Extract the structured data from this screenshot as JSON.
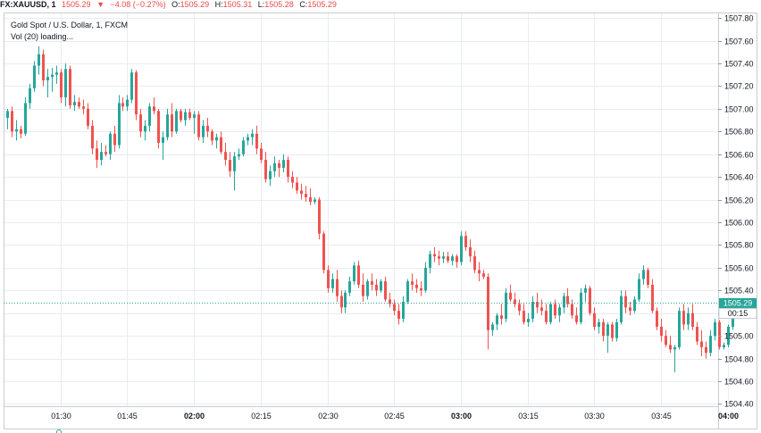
{
  "header": {
    "symbol": "FX:XAUUSD, 1",
    "last": "1505.29",
    "change_arrow": "▼",
    "change": "−4.08 (−0.27%)",
    "o_label": "O:",
    "o_value": "1505.29",
    "h_label": "H:",
    "h_value": "1505.31",
    "l_label": "L:",
    "l_value": "1505.28",
    "c_label": "C:",
    "c_value": "1505.29"
  },
  "legend": {
    "title": "Gold Spot / U.S. Dollar, 1, FXCM",
    "volume": "Vol (20) loading..."
  },
  "price_label": "1505.29",
  "countdown": "00:15",
  "colors": {
    "up": "#26a69a",
    "down": "#ef5350",
    "grid": "#e8ecf2",
    "price_line": "#26a69a",
    "text": "#131722"
  },
  "chart_data": {
    "type": "candlestick",
    "title": "Gold Spot / U.S. Dollar, 1, FXCM",
    "y_ticks": [
      "1504.40",
      "1504.60",
      "1504.80",
      "1505.00",
      "1505.20",
      "1505.40",
      "1505.60",
      "1505.80",
      "1506.00",
      "1506.20",
      "1506.40",
      "1506.60",
      "1506.80",
      "1507.00",
      "1507.20",
      "1507.40",
      "1507.60",
      "1507.80"
    ],
    "ylim": [
      1504.38,
      1507.84
    ],
    "x_ticks": [
      {
        "label": "01:30",
        "bar": 12,
        "bold": false
      },
      {
        "label": "01:45",
        "bar": 27,
        "bold": false
      },
      {
        "label": "02:00",
        "bar": 42,
        "bold": true
      },
      {
        "label": "02:15",
        "bar": 57,
        "bold": false
      },
      {
        "label": "02:30",
        "bar": 72,
        "bold": false
      },
      {
        "label": "02:45",
        "bar": 87,
        "bold": false
      },
      {
        "label": "03:00",
        "bar": 102,
        "bold": true
      },
      {
        "label": "03:15",
        "bar": 117,
        "bold": false
      },
      {
        "label": "03:30",
        "bar": 132,
        "bold": false
      },
      {
        "label": "03:45",
        "bar": 147,
        "bold": false
      },
      {
        "label": "04:00",
        "bar": 162,
        "bold": true
      }
    ],
    "last_price": 1505.29,
    "grid": true,
    "series": [
      {
        "o": 1506.92,
        "h": 1507.0,
        "l": 1506.82,
        "c": 1506.98
      },
      {
        "o": 1506.98,
        "h": 1507.02,
        "l": 1506.75,
        "c": 1506.8
      },
      {
        "o": 1506.8,
        "h": 1506.9,
        "l": 1506.72,
        "c": 1506.82
      },
      {
        "o": 1506.82,
        "h": 1506.85,
        "l": 1506.74,
        "c": 1506.78
      },
      {
        "o": 1506.78,
        "h": 1507.1,
        "l": 1506.76,
        "c": 1507.05
      },
      {
        "o": 1507.05,
        "h": 1507.22,
        "l": 1507.0,
        "c": 1507.18
      },
      {
        "o": 1507.18,
        "h": 1507.42,
        "l": 1507.15,
        "c": 1507.38
      },
      {
        "o": 1507.38,
        "h": 1507.55,
        "l": 1507.3,
        "c": 1507.48
      },
      {
        "o": 1507.48,
        "h": 1507.52,
        "l": 1507.2,
        "c": 1507.25
      },
      {
        "o": 1507.25,
        "h": 1507.35,
        "l": 1507.1,
        "c": 1507.28
      },
      {
        "o": 1507.28,
        "h": 1507.36,
        "l": 1507.15,
        "c": 1507.3
      },
      {
        "o": 1507.3,
        "h": 1507.38,
        "l": 1507.22,
        "c": 1507.32
      },
      {
        "o": 1507.32,
        "h": 1507.35,
        "l": 1507.05,
        "c": 1507.1
      },
      {
        "o": 1507.1,
        "h": 1507.4,
        "l": 1507.02,
        "c": 1507.35
      },
      {
        "o": 1507.35,
        "h": 1507.38,
        "l": 1507.0,
        "c": 1507.03
      },
      {
        "o": 1507.03,
        "h": 1507.12,
        "l": 1506.98,
        "c": 1507.06
      },
      {
        "o": 1507.06,
        "h": 1507.1,
        "l": 1507.0,
        "c": 1507.02
      },
      {
        "o": 1507.02,
        "h": 1507.08,
        "l": 1506.95,
        "c": 1507.0
      },
      {
        "o": 1507.0,
        "h": 1507.05,
        "l": 1506.82,
        "c": 1506.85
      },
      {
        "o": 1506.85,
        "h": 1506.9,
        "l": 1506.6,
        "c": 1506.65
      },
      {
        "o": 1506.65,
        "h": 1506.72,
        "l": 1506.48,
        "c": 1506.55
      },
      {
        "o": 1506.55,
        "h": 1506.7,
        "l": 1506.5,
        "c": 1506.62
      },
      {
        "o": 1506.62,
        "h": 1506.68,
        "l": 1506.58,
        "c": 1506.6
      },
      {
        "o": 1506.6,
        "h": 1506.8,
        "l": 1506.55,
        "c": 1506.78
      },
      {
        "o": 1506.78,
        "h": 1506.85,
        "l": 1506.62,
        "c": 1506.68
      },
      {
        "o": 1506.68,
        "h": 1507.12,
        "l": 1506.65,
        "c": 1507.05
      },
      {
        "o": 1507.05,
        "h": 1507.1,
        "l": 1506.98,
        "c": 1507.02
      },
      {
        "o": 1507.02,
        "h": 1507.12,
        "l": 1506.98,
        "c": 1507.08
      },
      {
        "o": 1507.08,
        "h": 1507.35,
        "l": 1507.05,
        "c": 1507.32
      },
      {
        "o": 1507.32,
        "h": 1507.34,
        "l": 1506.9,
        "c": 1506.95
      },
      {
        "o": 1506.95,
        "h": 1507.0,
        "l": 1506.75,
        "c": 1506.8
      },
      {
        "o": 1506.8,
        "h": 1506.9,
        "l": 1506.72,
        "c": 1506.85
      },
      {
        "o": 1506.85,
        "h": 1507.05,
        "l": 1506.8,
        "c": 1507.02
      },
      {
        "o": 1507.02,
        "h": 1507.1,
        "l": 1506.95,
        "c": 1506.98
      },
      {
        "o": 1506.98,
        "h": 1507.0,
        "l": 1506.65,
        "c": 1506.7
      },
      {
        "o": 1506.7,
        "h": 1506.8,
        "l": 1506.55,
        "c": 1506.75
      },
      {
        "o": 1506.75,
        "h": 1507.0,
        "l": 1506.72,
        "c": 1506.95
      },
      {
        "o": 1506.95,
        "h": 1507.05,
        "l": 1506.75,
        "c": 1506.8
      },
      {
        "o": 1506.8,
        "h": 1507.0,
        "l": 1506.78,
        "c": 1506.98
      },
      {
        "o": 1506.98,
        "h": 1507.0,
        "l": 1506.88,
        "c": 1506.9
      },
      {
        "o": 1506.9,
        "h": 1507.0,
        "l": 1506.85,
        "c": 1506.97
      },
      {
        "o": 1506.97,
        "h": 1507.0,
        "l": 1506.9,
        "c": 1506.92
      },
      {
        "o": 1506.92,
        "h": 1506.98,
        "l": 1506.78,
        "c": 1506.95
      },
      {
        "o": 1506.95,
        "h": 1506.98,
        "l": 1506.72,
        "c": 1506.75
      },
      {
        "o": 1506.75,
        "h": 1506.9,
        "l": 1506.7,
        "c": 1506.85
      },
      {
        "o": 1506.85,
        "h": 1506.92,
        "l": 1506.75,
        "c": 1506.8
      },
      {
        "o": 1506.8,
        "h": 1506.82,
        "l": 1506.68,
        "c": 1506.72
      },
      {
        "o": 1506.72,
        "h": 1506.78,
        "l": 1506.65,
        "c": 1506.75
      },
      {
        "o": 1506.75,
        "h": 1506.8,
        "l": 1506.6,
        "c": 1506.62
      },
      {
        "o": 1506.62,
        "h": 1506.7,
        "l": 1506.5,
        "c": 1506.55
      },
      {
        "o": 1506.55,
        "h": 1506.62,
        "l": 1506.4,
        "c": 1506.45
      },
      {
        "o": 1506.45,
        "h": 1506.62,
        "l": 1506.28,
        "c": 1506.58
      },
      {
        "o": 1506.58,
        "h": 1506.65,
        "l": 1506.55,
        "c": 1506.6
      },
      {
        "o": 1506.6,
        "h": 1506.75,
        "l": 1506.58,
        "c": 1506.72
      },
      {
        "o": 1506.72,
        "h": 1506.78,
        "l": 1506.68,
        "c": 1506.75
      },
      {
        "o": 1506.75,
        "h": 1506.82,
        "l": 1506.68,
        "c": 1506.78
      },
      {
        "o": 1506.78,
        "h": 1506.85,
        "l": 1506.6,
        "c": 1506.65
      },
      {
        "o": 1506.65,
        "h": 1506.7,
        "l": 1506.52,
        "c": 1506.55
      },
      {
        "o": 1506.55,
        "h": 1506.62,
        "l": 1506.35,
        "c": 1506.38
      },
      {
        "o": 1506.38,
        "h": 1506.5,
        "l": 1506.32,
        "c": 1506.45
      },
      {
        "o": 1506.45,
        "h": 1506.58,
        "l": 1506.4,
        "c": 1506.52
      },
      {
        "o": 1506.52,
        "h": 1506.55,
        "l": 1506.4,
        "c": 1506.48
      },
      {
        "o": 1506.48,
        "h": 1506.6,
        "l": 1506.44,
        "c": 1506.55
      },
      {
        "o": 1506.55,
        "h": 1506.58,
        "l": 1506.35,
        "c": 1506.4
      },
      {
        "o": 1506.4,
        "h": 1506.45,
        "l": 1506.3,
        "c": 1506.35
      },
      {
        "o": 1506.35,
        "h": 1506.4,
        "l": 1506.25,
        "c": 1506.28
      },
      {
        "o": 1506.28,
        "h": 1506.34,
        "l": 1506.2,
        "c": 1506.25
      },
      {
        "o": 1506.25,
        "h": 1506.32,
        "l": 1506.18,
        "c": 1506.22
      },
      {
        "o": 1506.22,
        "h": 1506.3,
        "l": 1506.15,
        "c": 1506.18
      },
      {
        "o": 1506.18,
        "h": 1506.22,
        "l": 1506.16,
        "c": 1506.2
      },
      {
        "o": 1506.2,
        "h": 1506.22,
        "l": 1505.85,
        "c": 1505.9
      },
      {
        "o": 1505.9,
        "h": 1505.92,
        "l": 1505.55,
        "c": 1505.58
      },
      {
        "o": 1505.58,
        "h": 1505.62,
        "l": 1505.38,
        "c": 1505.42
      },
      {
        "o": 1505.42,
        "h": 1505.55,
        "l": 1505.38,
        "c": 1505.5
      },
      {
        "o": 1505.5,
        "h": 1505.58,
        "l": 1505.3,
        "c": 1505.35
      },
      {
        "o": 1505.35,
        "h": 1505.4,
        "l": 1505.2,
        "c": 1505.25
      },
      {
        "o": 1505.25,
        "h": 1505.4,
        "l": 1505.2,
        "c": 1505.38
      },
      {
        "o": 1505.38,
        "h": 1505.52,
        "l": 1505.35,
        "c": 1505.48
      },
      {
        "o": 1505.48,
        "h": 1505.65,
        "l": 1505.45,
        "c": 1505.62
      },
      {
        "o": 1505.62,
        "h": 1505.66,
        "l": 1505.42,
        "c": 1505.45
      },
      {
        "o": 1505.45,
        "h": 1505.55,
        "l": 1505.3,
        "c": 1505.35
      },
      {
        "o": 1505.35,
        "h": 1505.5,
        "l": 1505.32,
        "c": 1505.48
      },
      {
        "o": 1505.48,
        "h": 1505.55,
        "l": 1505.4,
        "c": 1505.45
      },
      {
        "o": 1505.45,
        "h": 1505.5,
        "l": 1505.35,
        "c": 1505.4
      },
      {
        "o": 1505.4,
        "h": 1505.5,
        "l": 1505.38,
        "c": 1505.48
      },
      {
        "o": 1505.48,
        "h": 1505.52,
        "l": 1505.3,
        "c": 1505.32
      },
      {
        "o": 1505.32,
        "h": 1505.38,
        "l": 1505.25,
        "c": 1505.28
      },
      {
        "o": 1505.28,
        "h": 1505.32,
        "l": 1505.18,
        "c": 1505.22
      },
      {
        "o": 1505.22,
        "h": 1505.28,
        "l": 1505.1,
        "c": 1505.15
      },
      {
        "o": 1505.15,
        "h": 1505.35,
        "l": 1505.12,
        "c": 1505.3
      },
      {
        "o": 1505.3,
        "h": 1505.5,
        "l": 1505.28,
        "c": 1505.48
      },
      {
        "o": 1505.48,
        "h": 1505.55,
        "l": 1505.4,
        "c": 1505.45
      },
      {
        "o": 1505.45,
        "h": 1505.5,
        "l": 1505.38,
        "c": 1505.42
      },
      {
        "o": 1505.42,
        "h": 1505.48,
        "l": 1505.35,
        "c": 1505.4
      },
      {
        "o": 1505.4,
        "h": 1505.65,
        "l": 1505.38,
        "c": 1505.6
      },
      {
        "o": 1505.6,
        "h": 1505.75,
        "l": 1505.55,
        "c": 1505.72
      },
      {
        "o": 1505.72,
        "h": 1505.78,
        "l": 1505.65,
        "c": 1505.7
      },
      {
        "o": 1505.7,
        "h": 1505.75,
        "l": 1505.62,
        "c": 1505.68
      },
      {
        "o": 1505.68,
        "h": 1505.74,
        "l": 1505.64,
        "c": 1505.7
      },
      {
        "o": 1505.7,
        "h": 1505.74,
        "l": 1505.64,
        "c": 1505.66
      },
      {
        "o": 1505.66,
        "h": 1505.72,
        "l": 1505.62,
        "c": 1505.7
      },
      {
        "o": 1505.7,
        "h": 1505.72,
        "l": 1505.6,
        "c": 1505.65
      },
      {
        "o": 1505.65,
        "h": 1505.92,
        "l": 1505.62,
        "c": 1505.88
      },
      {
        "o": 1505.88,
        "h": 1505.92,
        "l": 1505.75,
        "c": 1505.78
      },
      {
        "o": 1505.78,
        "h": 1505.85,
        "l": 1505.65,
        "c": 1505.7
      },
      {
        "o": 1505.7,
        "h": 1505.75,
        "l": 1505.55,
        "c": 1505.58
      },
      {
        "o": 1505.58,
        "h": 1505.65,
        "l": 1505.48,
        "c": 1505.55
      },
      {
        "o": 1505.55,
        "h": 1505.58,
        "l": 1505.5,
        "c": 1505.52
      },
      {
        "o": 1505.52,
        "h": 1505.55,
        "l": 1504.88,
        "c": 1505.05
      },
      {
        "o": 1505.05,
        "h": 1505.12,
        "l": 1505.0,
        "c": 1505.1
      },
      {
        "o": 1505.1,
        "h": 1505.2,
        "l": 1505.05,
        "c": 1505.18
      },
      {
        "o": 1505.18,
        "h": 1505.28,
        "l": 1505.1,
        "c": 1505.15
      },
      {
        "o": 1505.15,
        "h": 1505.42,
        "l": 1505.12,
        "c": 1505.38
      },
      {
        "o": 1505.38,
        "h": 1505.45,
        "l": 1505.3,
        "c": 1505.32
      },
      {
        "o": 1505.32,
        "h": 1505.38,
        "l": 1505.25,
        "c": 1505.28
      },
      {
        "o": 1505.28,
        "h": 1505.32,
        "l": 1505.18,
        "c": 1505.22
      },
      {
        "o": 1505.22,
        "h": 1505.28,
        "l": 1505.1,
        "c": 1505.12
      },
      {
        "o": 1505.12,
        "h": 1505.2,
        "l": 1505.08,
        "c": 1505.15
      },
      {
        "o": 1505.15,
        "h": 1505.35,
        "l": 1505.12,
        "c": 1505.3
      },
      {
        "o": 1505.3,
        "h": 1505.38,
        "l": 1505.2,
        "c": 1505.25
      },
      {
        "o": 1505.25,
        "h": 1505.32,
        "l": 1505.18,
        "c": 1505.22
      },
      {
        "o": 1505.22,
        "h": 1505.28,
        "l": 1505.1,
        "c": 1505.12
      },
      {
        "o": 1505.12,
        "h": 1505.3,
        "l": 1505.1,
        "c": 1505.28
      },
      {
        "o": 1505.28,
        "h": 1505.32,
        "l": 1505.15,
        "c": 1505.18
      },
      {
        "o": 1505.18,
        "h": 1505.28,
        "l": 1505.12,
        "c": 1505.25
      },
      {
        "o": 1505.25,
        "h": 1505.38,
        "l": 1505.2,
        "c": 1505.35
      },
      {
        "o": 1505.35,
        "h": 1505.42,
        "l": 1505.25,
        "c": 1505.28
      },
      {
        "o": 1505.28,
        "h": 1505.32,
        "l": 1505.15,
        "c": 1505.18
      },
      {
        "o": 1505.18,
        "h": 1505.25,
        "l": 1505.1,
        "c": 1505.12
      },
      {
        "o": 1505.12,
        "h": 1505.42,
        "l": 1505.1,
        "c": 1505.38
      },
      {
        "o": 1505.38,
        "h": 1505.45,
        "l": 1505.3,
        "c": 1505.42
      },
      {
        "o": 1505.42,
        "h": 1505.44,
        "l": 1505.18,
        "c": 1505.2
      },
      {
        "o": 1505.2,
        "h": 1505.25,
        "l": 1505.05,
        "c": 1505.08
      },
      {
        "o": 1505.08,
        "h": 1505.15,
        "l": 1505.02,
        "c": 1505.12
      },
      {
        "o": 1505.12,
        "h": 1505.15,
        "l": 1504.95,
        "c": 1505.0
      },
      {
        "o": 1505.0,
        "h": 1505.12,
        "l": 1504.85,
        "c": 1505.1
      },
      {
        "o": 1505.1,
        "h": 1505.12,
        "l": 1504.95,
        "c": 1504.98
      },
      {
        "o": 1504.98,
        "h": 1505.15,
        "l": 1504.95,
        "c": 1505.12
      },
      {
        "o": 1505.12,
        "h": 1505.4,
        "l": 1505.1,
        "c": 1505.35
      },
      {
        "o": 1505.35,
        "h": 1505.4,
        "l": 1505.2,
        "c": 1505.25
      },
      {
        "o": 1505.25,
        "h": 1505.3,
        "l": 1505.18,
        "c": 1505.22
      },
      {
        "o": 1505.22,
        "h": 1505.35,
        "l": 1505.2,
        "c": 1505.32
      },
      {
        "o": 1505.32,
        "h": 1505.55,
        "l": 1505.3,
        "c": 1505.5
      },
      {
        "o": 1505.5,
        "h": 1505.62,
        "l": 1505.45,
        "c": 1505.58
      },
      {
        "o": 1505.58,
        "h": 1505.6,
        "l": 1505.42,
        "c": 1505.45
      },
      {
        "o": 1505.45,
        "h": 1505.5,
        "l": 1505.2,
        "c": 1505.22
      },
      {
        "o": 1505.22,
        "h": 1505.25,
        "l": 1505.05,
        "c": 1505.08
      },
      {
        "o": 1505.08,
        "h": 1505.15,
        "l": 1504.95,
        "c": 1505.0
      },
      {
        "o": 1505.0,
        "h": 1505.05,
        "l": 1504.9,
        "c": 1504.92
      },
      {
        "o": 1504.92,
        "h": 1505.0,
        "l": 1504.85,
        "c": 1504.88
      },
      {
        "o": 1504.88,
        "h": 1504.92,
        "l": 1504.68,
        "c": 1504.9
      },
      {
        "o": 1504.9,
        "h": 1505.25,
        "l": 1504.88,
        "c": 1505.22
      },
      {
        "o": 1505.22,
        "h": 1505.28,
        "l": 1505.05,
        "c": 1505.1
      },
      {
        "o": 1505.1,
        "h": 1505.25,
        "l": 1505.05,
        "c": 1505.2
      },
      {
        "o": 1505.2,
        "h": 1505.28,
        "l": 1505.05,
        "c": 1505.08
      },
      {
        "o": 1505.08,
        "h": 1505.12,
        "l": 1504.92,
        "c": 1504.95
      },
      {
        "o": 1504.95,
        "h": 1505.05,
        "l": 1504.82,
        "c": 1504.9
      },
      {
        "o": 1504.9,
        "h": 1504.95,
        "l": 1504.8,
        "c": 1504.85
      },
      {
        "o": 1504.85,
        "h": 1505.05,
        "l": 1504.82,
        "c": 1505.0
      },
      {
        "o": 1505.0,
        "h": 1505.15,
        "l": 1504.96,
        "c": 1505.12
      },
      {
        "o": 1505.12,
        "h": 1505.14,
        "l": 1504.88,
        "c": 1504.9
      },
      {
        "o": 1504.9,
        "h": 1504.94,
        "l": 1504.88,
        "c": 1504.92
      },
      {
        "o": 1504.92,
        "h": 1505.1,
        "l": 1504.9,
        "c": 1505.08
      },
      {
        "o": 1505.08,
        "h": 1505.3,
        "l": 1505.05,
        "c": 1505.28
      },
      {
        "o": 1505.28,
        "h": 1505.31,
        "l": 1505.26,
        "c": 1505.29
      },
      {
        "o": 1505.29,
        "h": 1505.31,
        "l": 1505.28,
        "c": 1505.29
      }
    ]
  }
}
